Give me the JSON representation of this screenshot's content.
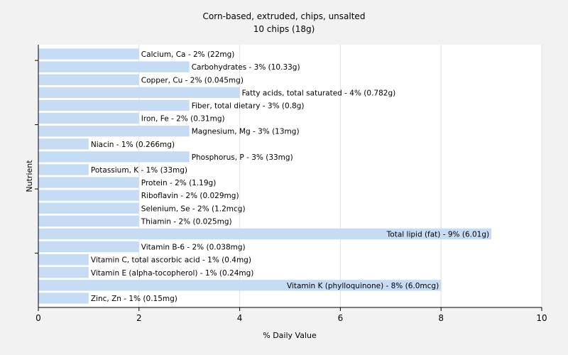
{
  "chart_data": {
    "type": "bar",
    "orientation": "horizontal",
    "title": "Corn-based, extruded, chips, unsalted",
    "subtitle": "10 chips (18g)",
    "xlabel": "% Daily Value",
    "ylabel": "Nutrient",
    "xlim": [
      0,
      10
    ],
    "xticks": [
      0,
      2,
      4,
      6,
      8,
      10
    ],
    "grid": true,
    "bar_color": "#c6dcf5",
    "categories": [
      "Calcium, Ca",
      "Carbohydrates",
      "Copper, Cu",
      "Fatty acids, total saturated",
      "Fiber, total dietary",
      "Iron, Fe",
      "Magnesium, Mg",
      "Niacin",
      "Phosphorus, P",
      "Potassium, K",
      "Protein",
      "Riboflavin",
      "Selenium, Se",
      "Thiamin",
      "Total lipid (fat)",
      "Vitamin B-6",
      "Vitamin C, total ascorbic acid",
      "Vitamin E (alpha-tocopherol)",
      "Vitamin K (phylloquinone)",
      "Zinc, Zn"
    ],
    "values": [
      2,
      3,
      2,
      4,
      3,
      2,
      3,
      1,
      3,
      1,
      2,
      2,
      2,
      2,
      9,
      2,
      1,
      1,
      8,
      1
    ],
    "labels": [
      "Calcium, Ca - 2% (22mg)",
      "Carbohydrates - 3% (10.33g)",
      "Copper, Cu - 2% (0.045mg)",
      "Fatty acids, total saturated - 4% (0.782g)",
      "Fiber, total dietary - 3% (0.8g)",
      "Iron, Fe - 2% (0.31mg)",
      "Magnesium, Mg - 3% (13mg)",
      "Niacin - 1% (0.266mg)",
      "Phosphorus, P - 3% (33mg)",
      "Potassium, K - 1% (33mg)",
      "Protein - 2% (1.19g)",
      "Riboflavin - 2% (0.029mg)",
      "Selenium, Se - 2% (1.2mcg)",
      "Thiamin - 2% (0.025mg)",
      "Total lipid (fat) - 9% (6.01g)",
      "Vitamin B-6 - 2% (0.038mg)",
      "Vitamin C, total ascorbic acid - 1% (0.4mg)",
      "Vitamin E (alpha-tocopherol) - 1% (0.24mg)",
      "Vitamin K (phylloquinone) - 8% (6.0mcg)",
      "Zinc, Zn - 1% (0.15mg)"
    ]
  }
}
